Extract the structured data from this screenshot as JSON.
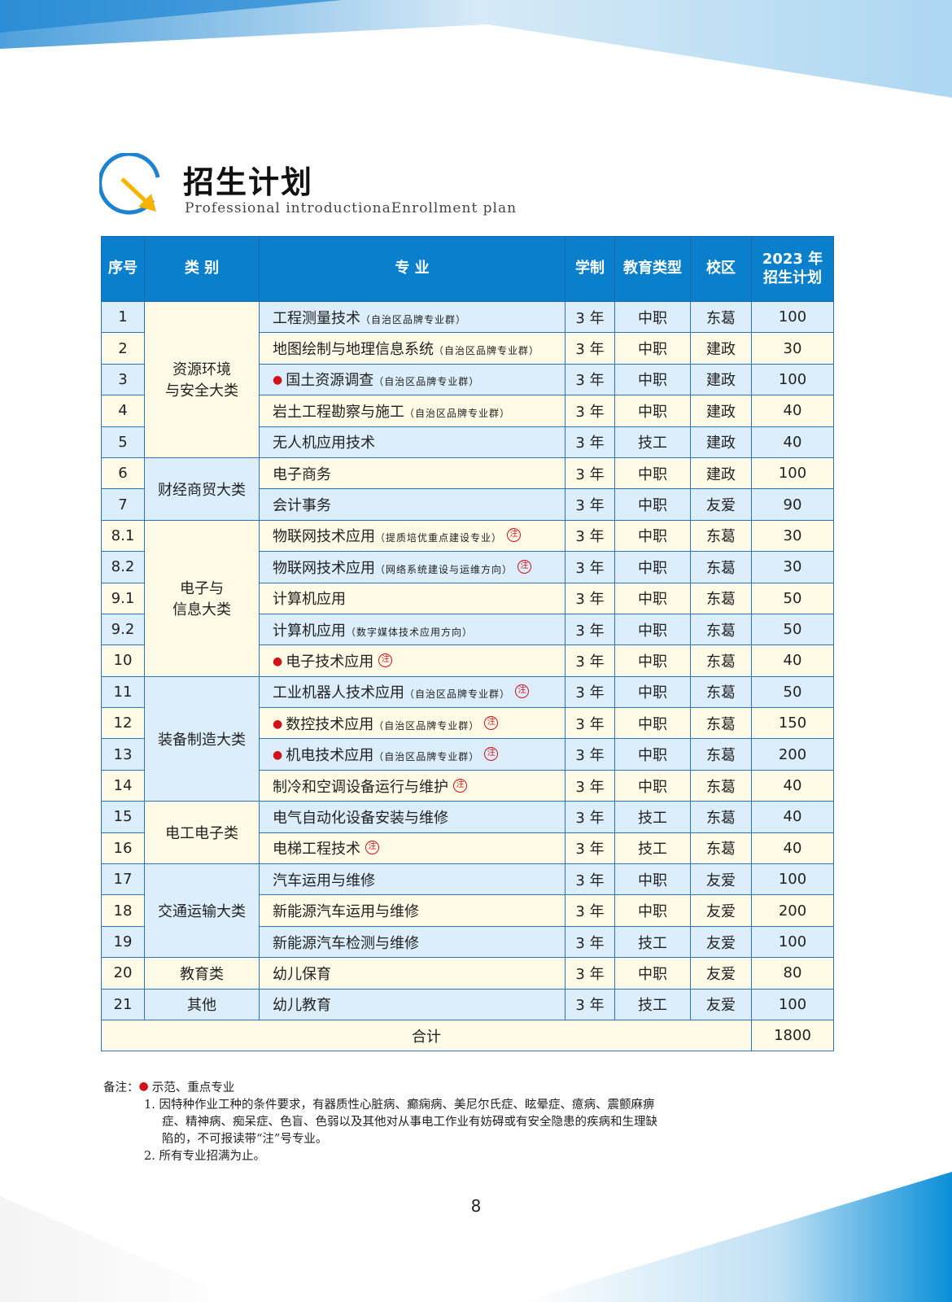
{
  "header": {
    "title": "招生计划",
    "subtitle": "Professional introductionaEnrollment plan"
  },
  "colors": {
    "header_blue": "#0a7fcb",
    "row_blue": "#dceefb",
    "row_yellow": "#fffbe7",
    "mark_red": "#d0121b",
    "arrow_yellow": "#f5b400"
  },
  "table": {
    "columns": [
      "序号",
      "类 别",
      "专 业",
      "学制",
      "教育类型",
      "校区",
      "2023 年",
      "招生计划"
    ],
    "groups": [
      {
        "category": "资源环境\n与安全大类",
        "rows": [
          {
            "no": "1",
            "major": "工程测量技术",
            "note": "（自治区品牌专业群）",
            "key": false,
            "zhu": false,
            "years": "3 年",
            "type": "中职",
            "campus": "东葛",
            "plan": "100"
          },
          {
            "no": "2",
            "major": "地图绘制与地理信息系统",
            "note": "（自治区品牌专业群）",
            "key": false,
            "zhu": false,
            "years": "3 年",
            "type": "中职",
            "campus": "建政",
            "plan": "30"
          },
          {
            "no": "3",
            "major": "国土资源调查",
            "note": "（自治区品牌专业群）",
            "key": true,
            "zhu": false,
            "years": "3 年",
            "type": "中职",
            "campus": "建政",
            "plan": "100"
          },
          {
            "no": "4",
            "major": "岩土工程勘察与施工",
            "note": "（自治区品牌专业群）",
            "key": false,
            "zhu": false,
            "years": "3 年",
            "type": "中职",
            "campus": "建政",
            "plan": "40"
          },
          {
            "no": "5",
            "major": "无人机应用技术",
            "note": "",
            "key": false,
            "zhu": false,
            "years": "3 年",
            "type": "技工",
            "campus": "建政",
            "plan": "40"
          }
        ]
      },
      {
        "category": "财经商贸大类",
        "rows": [
          {
            "no": "6",
            "major": "电子商务",
            "note": "",
            "key": false,
            "zhu": false,
            "years": "3 年",
            "type": "中职",
            "campus": "建政",
            "plan": "100"
          },
          {
            "no": "7",
            "major": "会计事务",
            "note": "",
            "key": false,
            "zhu": false,
            "years": "3 年",
            "type": "中职",
            "campus": "友爱",
            "plan": "90"
          }
        ]
      },
      {
        "category": "电子与\n信息大类",
        "rows": [
          {
            "no": "8.1",
            "major": "物联网技术应用",
            "note": "（提质培优重点建设专业）",
            "key": false,
            "zhu": true,
            "years": "3 年",
            "type": "中职",
            "campus": "东葛",
            "plan": "30"
          },
          {
            "no": "8.2",
            "major": "物联网技术应用",
            "note": "（网络系统建设与运维方向）",
            "key": false,
            "zhu": true,
            "years": "3 年",
            "type": "中职",
            "campus": "东葛",
            "plan": "30"
          },
          {
            "no": "9.1",
            "major": "计算机应用",
            "note": "",
            "key": false,
            "zhu": false,
            "years": "3 年",
            "type": "中职",
            "campus": "东葛",
            "plan": "50"
          },
          {
            "no": "9.2",
            "major": "计算机应用",
            "note": "（数字媒体技术应用方向）",
            "key": false,
            "zhu": false,
            "years": "3 年",
            "type": "中职",
            "campus": "东葛",
            "plan": "50"
          },
          {
            "no": "10",
            "major": "电子技术应用",
            "note": "",
            "key": true,
            "zhu": true,
            "years": "3 年",
            "type": "中职",
            "campus": "东葛",
            "plan": "40"
          }
        ]
      },
      {
        "category": "装备制造大类",
        "rows": [
          {
            "no": "11",
            "major": "工业机器人技术应用",
            "note": "（自治区品牌专业群）",
            "key": false,
            "zhu": true,
            "years": "3 年",
            "type": "中职",
            "campus": "东葛",
            "plan": "50"
          },
          {
            "no": "12",
            "major": "数控技术应用",
            "note": "（自治区品牌专业群）",
            "key": true,
            "zhu": true,
            "years": "3 年",
            "type": "中职",
            "campus": "东葛",
            "plan": "150"
          },
          {
            "no": "13",
            "major": "机电技术应用",
            "note": "（自治区品牌专业群）",
            "key": true,
            "zhu": true,
            "years": "3 年",
            "type": "中职",
            "campus": "东葛",
            "plan": "200"
          },
          {
            "no": "14",
            "major": "制冷和空调设备运行与维护",
            "note": "",
            "key": false,
            "zhu": true,
            "years": "3 年",
            "type": "中职",
            "campus": "东葛",
            "plan": "40"
          }
        ]
      },
      {
        "category": "电工电子类",
        "rows": [
          {
            "no": "15",
            "major": "电气自动化设备安装与维修",
            "note": "",
            "key": false,
            "zhu": false,
            "years": "3 年",
            "type": "技工",
            "campus": "东葛",
            "plan": "40"
          },
          {
            "no": "16",
            "major": "电梯工程技术",
            "note": "",
            "key": false,
            "zhu": true,
            "years": "3 年",
            "type": "技工",
            "campus": "东葛",
            "plan": "40"
          }
        ]
      },
      {
        "category": "交通运输大类",
        "rows": [
          {
            "no": "17",
            "major": "汽车运用与维修",
            "note": "",
            "key": false,
            "zhu": false,
            "years": "3 年",
            "type": "中职",
            "campus": "友爱",
            "plan": "100"
          },
          {
            "no": "18",
            "major": "新能源汽车运用与维修",
            "note": "",
            "key": false,
            "zhu": false,
            "years": "3 年",
            "type": "中职",
            "campus": "友爱",
            "plan": "200"
          },
          {
            "no": "19",
            "major": "新能源汽车检测与维修",
            "note": "",
            "key": false,
            "zhu": false,
            "years": "3 年",
            "type": "技工",
            "campus": "友爱",
            "plan": "100"
          }
        ]
      },
      {
        "category": "教育类",
        "rows": [
          {
            "no": "20",
            "major": "幼儿保育",
            "note": "",
            "key": false,
            "zhu": false,
            "years": "3 年",
            "type": "中职",
            "campus": "友爱",
            "plan": "80"
          }
        ]
      },
      {
        "category": "其他",
        "rows": [
          {
            "no": "21",
            "major": "幼儿教育",
            "note": "",
            "key": false,
            "zhu": false,
            "years": "3 年",
            "type": "技工",
            "campus": "友爱",
            "plan": "100"
          }
        ]
      }
    ],
    "zhu_mark": "注",
    "total_label": "合计",
    "total_value": "1800"
  },
  "notes": {
    "label": "备注：",
    "legend": "示范、重点专业",
    "items": [
      "1. 因特种作业工种的条件要求，有器质性心脏病、癫痫病、美尼尔氏症、眩晕症、癔病、震颤麻痹",
      "症、精神病、痴呆症、色盲、色弱以及其他对从事电工作业有妨碍或有安全隐患的疾病和生理缺",
      "陷的，不可报读带“注”号专业。",
      "2. 所有专业招满为止。"
    ]
  },
  "page_number": "8"
}
